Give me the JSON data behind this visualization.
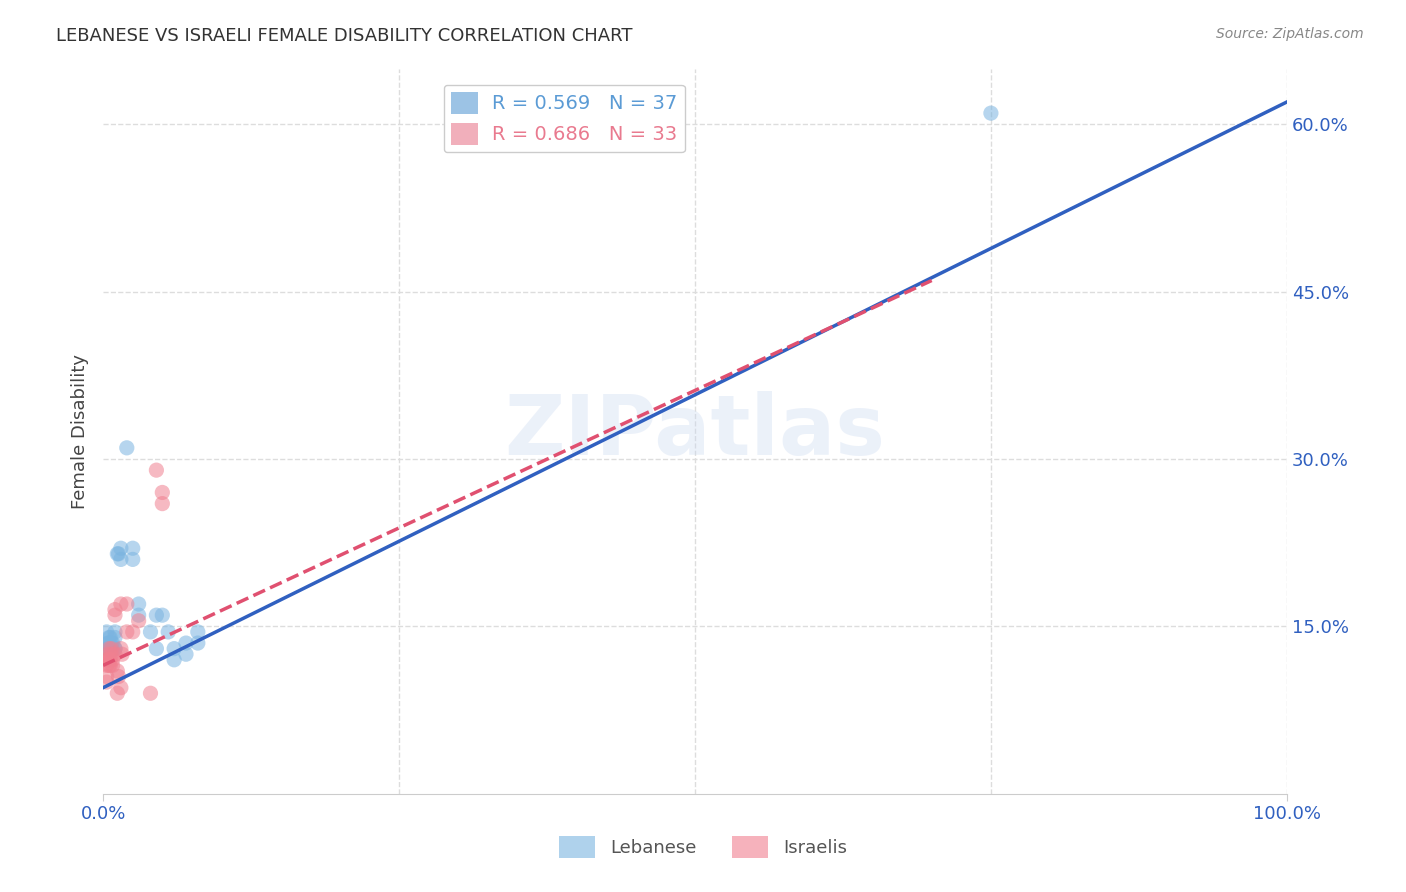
{
  "title": "LEBANESE VS ISRAELI FEMALE DISABILITY CORRELATION CHART",
  "source": "Source: ZipAtlas.com",
  "ylabel": "Female Disability",
  "xlim": [
    0,
    1
  ],
  "ylim": [
    0,
    0.65
  ],
  "background_color": "#ffffff",
  "watermark": "ZIPatlas",
  "legend_entries": [
    {
      "label": "R = 0.569   N = 37",
      "color": "#5b9bd5"
    },
    {
      "label": "R = 0.686   N = 33",
      "color": "#e97a8f"
    }
  ],
  "legend_bottom": [
    "Lebanese",
    "Israelis"
  ],
  "lebanese_scatter": [
    [
      0.003,
      0.13
    ],
    [
      0.003,
      0.145
    ],
    [
      0.004,
      0.13
    ],
    [
      0.004,
      0.135
    ],
    [
      0.005,
      0.14
    ],
    [
      0.005,
      0.135
    ],
    [
      0.006,
      0.13
    ],
    [
      0.006,
      0.14
    ],
    [
      0.007,
      0.13
    ],
    [
      0.007,
      0.135
    ],
    [
      0.008,
      0.13
    ],
    [
      0.008,
      0.135
    ],
    [
      0.01,
      0.13
    ],
    [
      0.01,
      0.14
    ],
    [
      0.01,
      0.145
    ],
    [
      0.01,
      0.13
    ],
    [
      0.012,
      0.215
    ],
    [
      0.013,
      0.215
    ],
    [
      0.015,
      0.22
    ],
    [
      0.015,
      0.21
    ],
    [
      0.02,
      0.31
    ],
    [
      0.025,
      0.22
    ],
    [
      0.025,
      0.21
    ],
    [
      0.03,
      0.16
    ],
    [
      0.03,
      0.17
    ],
    [
      0.04,
      0.145
    ],
    [
      0.045,
      0.13
    ],
    [
      0.045,
      0.16
    ],
    [
      0.05,
      0.16
    ],
    [
      0.055,
      0.145
    ],
    [
      0.06,
      0.13
    ],
    [
      0.06,
      0.12
    ],
    [
      0.07,
      0.135
    ],
    [
      0.07,
      0.125
    ],
    [
      0.08,
      0.135
    ],
    [
      0.75,
      0.61
    ],
    [
      0.08,
      0.145
    ]
  ],
  "israeli_scatter": [
    [
      0.003,
      0.12
    ],
    [
      0.003,
      0.115
    ],
    [
      0.004,
      0.12
    ],
    [
      0.004,
      0.125
    ],
    [
      0.005,
      0.13
    ],
    [
      0.005,
      0.12
    ],
    [
      0.005,
      0.115
    ],
    [
      0.006,
      0.12
    ],
    [
      0.006,
      0.115
    ],
    [
      0.007,
      0.125
    ],
    [
      0.007,
      0.13
    ],
    [
      0.008,
      0.12
    ],
    [
      0.01,
      0.125
    ],
    [
      0.01,
      0.165
    ],
    [
      0.012,
      0.11
    ],
    [
      0.013,
      0.105
    ],
    [
      0.015,
      0.095
    ],
    [
      0.02,
      0.145
    ],
    [
      0.025,
      0.145
    ],
    [
      0.03,
      0.155
    ],
    [
      0.04,
      0.09
    ],
    [
      0.045,
      0.29
    ],
    [
      0.05,
      0.27
    ],
    [
      0.05,
      0.26
    ],
    [
      0.015,
      0.17
    ],
    [
      0.02,
      0.17
    ],
    [
      0.01,
      0.16
    ],
    [
      0.012,
      0.09
    ],
    [
      0.015,
      0.13
    ],
    [
      0.016,
      0.125
    ],
    [
      0.008,
      0.115
    ],
    [
      0.003,
      0.105
    ],
    [
      0.003,
      0.1
    ]
  ],
  "lebanese_line": {
    "x": [
      0,
      1.0
    ],
    "y": [
      0.095,
      0.62
    ]
  },
  "israeli_line": {
    "x": [
      0,
      0.7
    ],
    "y": [
      0.115,
      0.46
    ]
  },
  "ytick_labels": [
    "15.0%",
    "30.0%",
    "45.0%",
    "60.0%"
  ],
  "ytick_values": [
    0.15,
    0.3,
    0.45,
    0.6
  ],
  "xtick_labels": [
    "0.0%",
    "100.0%"
  ],
  "xtick_values": [
    0.0,
    1.0
  ],
  "grid_color": "#dddddd",
  "dot_size": 120,
  "dot_alpha": 0.55,
  "lebanese_color": "#7ab4e0",
  "israeli_color": "#f08090",
  "lebanese_line_color": "#3060c0",
  "israeli_line_color": "#e05070"
}
